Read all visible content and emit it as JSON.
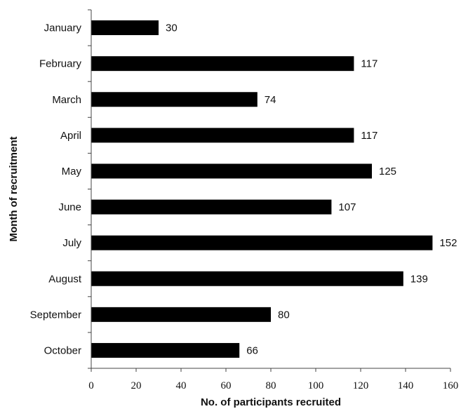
{
  "chart_data": {
    "type": "bar",
    "orientation": "horizontal",
    "categories": [
      "January",
      "February",
      "March",
      "April",
      "May",
      "June",
      "July",
      "August",
      "September",
      "October"
    ],
    "values": [
      30,
      117,
      74,
      117,
      125,
      107,
      152,
      139,
      80,
      66
    ],
    "xlabel": "No. of participants recruited",
    "ylabel": "Month of recruitment",
    "xlim": [
      0,
      160
    ],
    "xticks": [
      0,
      20,
      40,
      60,
      80,
      100,
      120,
      140,
      160
    ],
    "grid": false,
    "bar_color": "#000000"
  }
}
